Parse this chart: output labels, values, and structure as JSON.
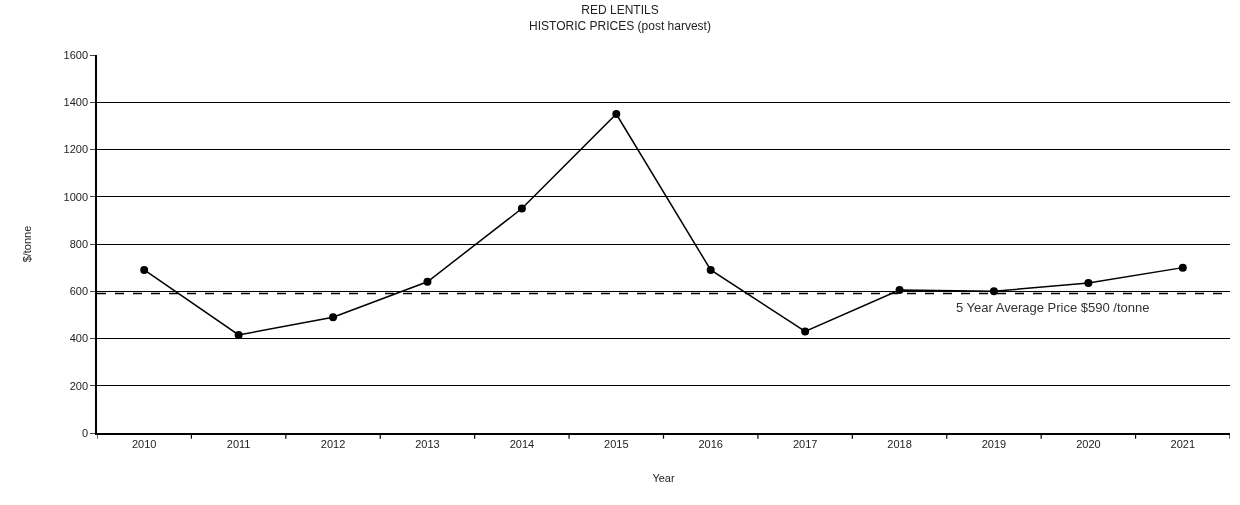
{
  "chart_data": {
    "type": "line",
    "title": "RED LENTILS",
    "subtitle": "HISTORIC PRICES (post harvest)",
    "xlabel": "Year",
    "ylabel": "$/tonne",
    "categories": [
      "2010",
      "2011",
      "2012",
      "2013",
      "2014",
      "2015",
      "2016",
      "2017",
      "2018",
      "2019",
      "2020",
      "2021"
    ],
    "series": [
      {
        "color": "#000000",
        "values": [
          690,
          415,
          490,
          640,
          950,
          1350,
          690,
          430,
          605,
          600,
          635,
          700
        ]
      }
    ],
    "ylim": [
      0,
      1600
    ],
    "yticks": [
      0,
      200,
      400,
      600,
      800,
      1000,
      1200,
      1400,
      1600
    ],
    "ref_lines": [
      {
        "axis": "y",
        "value": 590,
        "label": "5 Year Average Price $590 /tonne",
        "color": "#000000",
        "line_style": "dashed"
      }
    ],
    "grid": "y",
    "legend": false,
    "marker": "circle",
    "line_style": "solid"
  }
}
